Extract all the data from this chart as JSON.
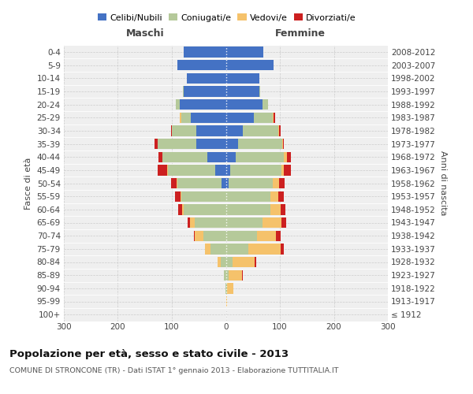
{
  "age_groups": [
    "100+",
    "95-99",
    "90-94",
    "85-89",
    "80-84",
    "75-79",
    "70-74",
    "65-69",
    "60-64",
    "55-59",
    "50-54",
    "45-49",
    "40-44",
    "35-39",
    "30-34",
    "25-29",
    "20-24",
    "15-19",
    "10-14",
    "5-9",
    "0-4"
  ],
  "birth_years": [
    "≤ 1912",
    "1913-1917",
    "1918-1922",
    "1923-1927",
    "1928-1932",
    "1933-1937",
    "1938-1942",
    "1943-1947",
    "1948-1952",
    "1953-1957",
    "1958-1962",
    "1963-1967",
    "1968-1972",
    "1973-1977",
    "1978-1982",
    "1983-1987",
    "1988-1992",
    "1993-1997",
    "1998-2002",
    "2003-2007",
    "2008-2012"
  ],
  "maschi": {
    "celibi": [
      0,
      0,
      0,
      0,
      0,
      0,
      0,
      0,
      0,
      0,
      8,
      20,
      35,
      55,
      55,
      65,
      85,
      78,
      72,
      90,
      78
    ],
    "coniugati": [
      0,
      0,
      1,
      4,
      10,
      28,
      42,
      58,
      78,
      82,
      82,
      88,
      82,
      72,
      45,
      18,
      8,
      2,
      0,
      0,
      0
    ],
    "vedovi": [
      0,
      0,
      0,
      0,
      5,
      10,
      15,
      8,
      3,
      2,
      1,
      1,
      0,
      0,
      0,
      3,
      0,
      0,
      0,
      0,
      0
    ],
    "divorziati": [
      0,
      0,
      0,
      0,
      0,
      0,
      2,
      5,
      8,
      10,
      10,
      18,
      8,
      5,
      2,
      0,
      0,
      0,
      0,
      0,
      0
    ]
  },
  "femmine": {
    "nubili": [
      0,
      0,
      0,
      0,
      0,
      0,
      0,
      0,
      0,
      0,
      5,
      8,
      18,
      22,
      32,
      52,
      68,
      62,
      62,
      88,
      70
    ],
    "coniugate": [
      0,
      0,
      2,
      5,
      12,
      42,
      58,
      68,
      82,
      82,
      82,
      95,
      90,
      82,
      65,
      35,
      10,
      2,
      0,
      0,
      0
    ],
    "vedove": [
      1,
      2,
      12,
      25,
      42,
      60,
      35,
      35,
      20,
      15,
      12,
      5,
      5,
      2,
      2,
      2,
      0,
      0,
      0,
      0,
      0
    ],
    "divorziate": [
      0,
      0,
      0,
      2,
      2,
      5,
      8,
      8,
      8,
      10,
      10,
      12,
      8,
      2,
      2,
      2,
      0,
      0,
      0,
      0,
      0
    ]
  },
  "colors": {
    "celibi": "#4472c4",
    "coniugati": "#b5c99a",
    "vedovi": "#f5c26b",
    "divorziati": "#cc2020"
  },
  "xlim": 300,
  "title": "Popolazione per età, sesso e stato civile - 2013",
  "subtitle": "COMUNE DI STRONCONE (TR) - Dati ISTAT 1° gennaio 2013 - Elaborazione TUTTITALIA.IT",
  "ylabel_left": "Fasce di età",
  "ylabel_right": "Anni di nascita",
  "xlabel_maschi": "Maschi",
  "xlabel_femmine": "Femmine",
  "legend_labels": [
    "Celibi/Nubili",
    "Coniugati/e",
    "Vedovi/e",
    "Divorziati/e"
  ],
  "bg_color": "#efefef"
}
